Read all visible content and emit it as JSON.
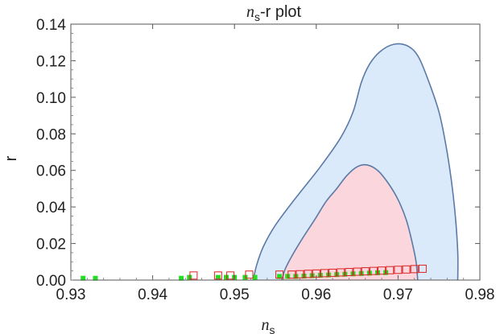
{
  "chart_data": {
    "type": "scatter",
    "title": {
      "italic": "n",
      "sub": "s",
      "rest": "-r plot"
    },
    "xlabel": {
      "italic": "n",
      "sub": "s"
    },
    "ylabel": "r",
    "xlim": [
      0.93,
      0.98
    ],
    "ylim": [
      0,
      0.14
    ],
    "xticks": [
      0.93,
      0.94,
      0.95,
      0.96,
      0.97,
      0.98
    ],
    "xtick_labels": [
      "0.93",
      "0.94",
      "0.95",
      "0.96",
      "0.97",
      "0.98"
    ],
    "yticks": [
      0,
      0.02,
      0.04,
      0.06,
      0.08,
      0.1,
      0.12,
      0.14
    ],
    "ytick_labels": [
      "0.00",
      "0.02",
      "0.04",
      "0.06",
      "0.08",
      "0.10",
      "0.12",
      "0.14"
    ],
    "grid": false,
    "colors": {
      "outer_fill": "#dbeafb",
      "inner_fill": "#fbd6dc",
      "contour_stroke": "#5b7aa6",
      "green": "#22dd22",
      "red": "#dd2222"
    },
    "contours": [
      {
        "level": "outer",
        "points": [
          [
            0.9523,
            0.0
          ],
          [
            0.9527,
            0.008
          ],
          [
            0.9535,
            0.018
          ],
          [
            0.955,
            0.03
          ],
          [
            0.9575,
            0.045
          ],
          [
            0.9605,
            0.062
          ],
          [
            0.963,
            0.078
          ],
          [
            0.9645,
            0.092
          ],
          [
            0.9655,
            0.108
          ],
          [
            0.9665,
            0.118
          ],
          [
            0.9678,
            0.125
          ],
          [
            0.9695,
            0.129
          ],
          [
            0.9712,
            0.128
          ],
          [
            0.9725,
            0.122
          ],
          [
            0.9738,
            0.108
          ],
          [
            0.975,
            0.092
          ],
          [
            0.9758,
            0.075
          ],
          [
            0.9765,
            0.055
          ],
          [
            0.977,
            0.035
          ],
          [
            0.9773,
            0.015
          ],
          [
            0.9773,
            0.0
          ]
        ]
      },
      {
        "level": "inner",
        "points": [
          [
            0.9558,
            0.0
          ],
          [
            0.9562,
            0.006
          ],
          [
            0.957,
            0.013
          ],
          [
            0.9582,
            0.022
          ],
          [
            0.9598,
            0.033
          ],
          [
            0.9612,
            0.043
          ],
          [
            0.9625,
            0.05
          ],
          [
            0.9637,
            0.057
          ],
          [
            0.965,
            0.062
          ],
          [
            0.9662,
            0.063
          ],
          [
            0.9675,
            0.06
          ],
          [
            0.9688,
            0.053
          ],
          [
            0.97,
            0.044
          ],
          [
            0.971,
            0.033
          ],
          [
            0.9717,
            0.021
          ],
          [
            0.9722,
            0.01
          ],
          [
            0.9724,
            0.0
          ]
        ]
      }
    ],
    "series": [
      {
        "marker": "filled-square",
        "points": [
          [
            0.9315,
            0.001
          ],
          [
            0.933,
            0.001
          ],
          [
            0.9435,
            0.001
          ],
          [
            0.9445,
            0.0015
          ],
          [
            0.948,
            0.0015
          ],
          [
            0.949,
            0.0015
          ],
          [
            0.95,
            0.0015
          ],
          [
            0.9513,
            0.0015
          ],
          [
            0.9525,
            0.0015
          ],
          [
            0.9555,
            0.002
          ],
          [
            0.9565,
            0.002
          ],
          [
            0.9575,
            0.002
          ],
          [
            0.9585,
            0.0022
          ],
          [
            0.9595,
            0.0024
          ],
          [
            0.9605,
            0.0026
          ],
          [
            0.9615,
            0.0028
          ],
          [
            0.9625,
            0.003
          ],
          [
            0.9635,
            0.0032
          ],
          [
            0.9645,
            0.0034
          ],
          [
            0.9655,
            0.0036
          ],
          [
            0.9665,
            0.0038
          ],
          [
            0.9675,
            0.004
          ],
          [
            0.9685,
            0.0041
          ]
        ]
      },
      {
        "marker": "open-square",
        "points": [
          [
            0.945,
            0.0025
          ],
          [
            0.948,
            0.0025
          ],
          [
            0.9495,
            0.0025
          ],
          [
            0.9518,
            0.003
          ],
          [
            0.9555,
            0.003
          ],
          [
            0.957,
            0.003
          ],
          [
            0.958,
            0.0032
          ],
          [
            0.959,
            0.0034
          ],
          [
            0.96,
            0.0036
          ],
          [
            0.961,
            0.0038
          ],
          [
            0.962,
            0.004
          ],
          [
            0.963,
            0.0042
          ],
          [
            0.964,
            0.0044
          ],
          [
            0.965,
            0.0046
          ],
          [
            0.966,
            0.0048
          ],
          [
            0.967,
            0.005
          ],
          [
            0.968,
            0.0052
          ],
          [
            0.969,
            0.0054
          ],
          [
            0.97,
            0.0056
          ],
          [
            0.971,
            0.0058
          ],
          [
            0.972,
            0.006
          ],
          [
            0.973,
            0.0062
          ]
        ]
      }
    ]
  }
}
